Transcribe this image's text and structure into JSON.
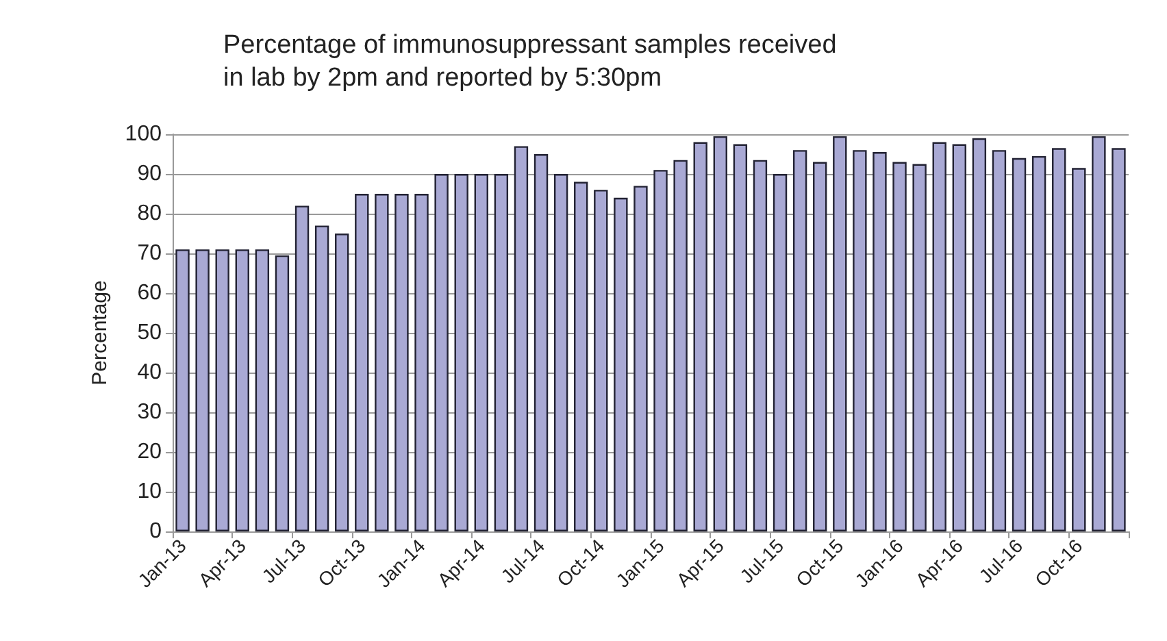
{
  "chart_data": {
    "type": "bar",
    "title": "Percentage of immunosuppressant samples received\nin lab by 2pm and reported by 5:30pm",
    "ylabel": "Percentage",
    "categories": [
      "Jan-13",
      null,
      null,
      "Apr-13",
      null,
      null,
      "Jul-13",
      null,
      null,
      "Oct-13",
      null,
      null,
      "Jan-14",
      null,
      null,
      "Apr-14",
      null,
      null,
      "Jul-14",
      null,
      null,
      "Oct-14",
      null,
      null,
      "Jan-15",
      null,
      null,
      "Apr-15",
      null,
      null,
      "Jul-15",
      null,
      null,
      "Oct-15",
      null,
      null,
      "Jan-16",
      null,
      null,
      "Apr-16",
      null,
      null,
      "Jul-16",
      null,
      null,
      "Oct-16",
      null,
      null
    ],
    "values": [
      71,
      71,
      71,
      71,
      71,
      69.5,
      82,
      77,
      75,
      85,
      85,
      85,
      85,
      90,
      90,
      90,
      90,
      97,
      95,
      90,
      88,
      86,
      84,
      87,
      91,
      93.5,
      98,
      99.5,
      97.5,
      93.5,
      90,
      96,
      93,
      99.5,
      96,
      95.5,
      93,
      92.5,
      98,
      97.5,
      99,
      96,
      94,
      94.5,
      96.5,
      91.5,
      99.5,
      96.5
    ],
    "color": "#a9a9d4",
    "ylim": [
      0,
      100
    ],
    "yticks": [
      0,
      10,
      20,
      30,
      40,
      50,
      60,
      70,
      80,
      90,
      100
    ],
    "grid": "y"
  }
}
